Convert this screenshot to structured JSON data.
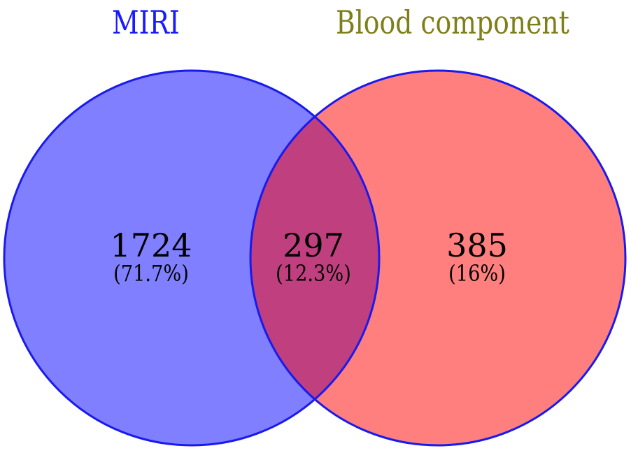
{
  "sets": [
    {
      "name": "MIRI",
      "label_color": "#1a1aff",
      "fill_color": "#7f7fff"
    },
    {
      "name": "Blood component",
      "label_color": "#7f7f1a",
      "fill_color": "#ff7f7f"
    }
  ],
  "overlap_color": "#bf3f7f",
  "border_color": "#1a1aee",
  "regions": {
    "a_only": {
      "count": "1724",
      "percent": "(71.7%)"
    },
    "both": {
      "count": "297",
      "percent": "(12.3%)"
    },
    "b_only": {
      "count": "385",
      "percent": "(16%)"
    }
  }
}
